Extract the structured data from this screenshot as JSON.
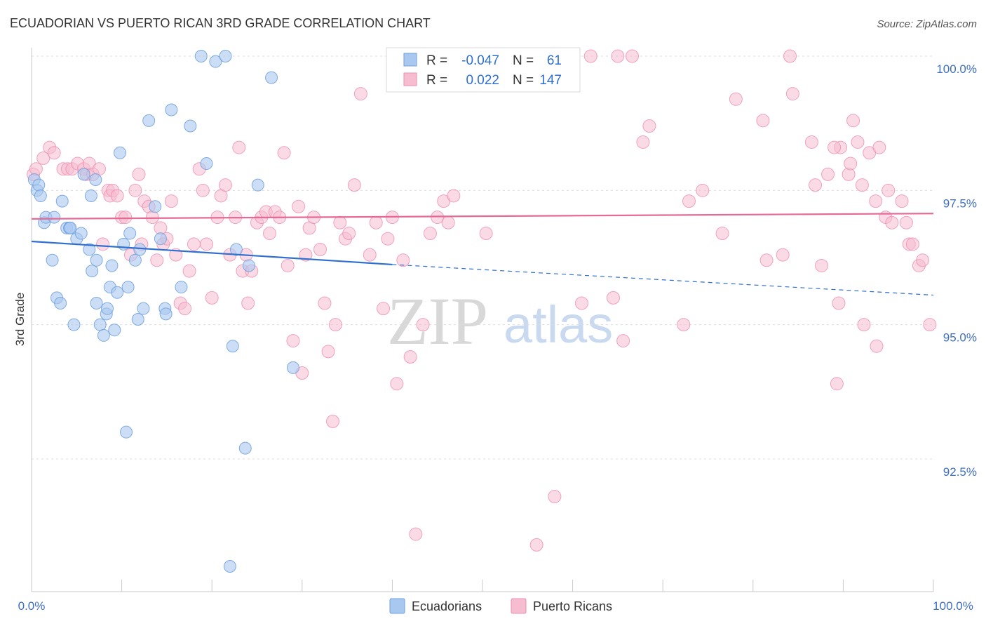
{
  "chart_data": {
    "type": "scatter",
    "title": "ECUADORIAN VS PUERTO RICAN 3RD GRADE CORRELATION CHART",
    "source": "Source: ZipAtlas.com",
    "ylabel": "3rd Grade",
    "xlim": [
      0,
      100
    ],
    "ylim": [
      90.0,
      100.4
    ],
    "x_tick_labels": [
      "0.0%",
      "100.0%"
    ],
    "y_ticks": [
      {
        "value": 100.0,
        "label": "100.0%"
      },
      {
        "value": 97.5,
        "label": "97.5%"
      },
      {
        "value": 95.0,
        "label": "95.0%"
      },
      {
        "value": 92.5,
        "label": "92.5%"
      }
    ],
    "grid": true,
    "legend": {
      "position": "top-center",
      "rows": [
        {
          "r_label": "R =",
          "r_value": "-0.047",
          "n_label": "N =",
          "n_value": "61"
        },
        {
          "r_label": "R =",
          "r_value": "0.022",
          "n_label": "N =",
          "n_value": "147"
        }
      ]
    },
    "watermark": {
      "zip": "ZIP",
      "atlas": "atlas"
    },
    "colors": {
      "ecuadorians_fill": "#a9c8f0",
      "ecuadorians_stroke": "#6f9fdc",
      "ecuadorians_line": "#2f6fd0",
      "puerto_ricans_fill": "#f6bcd0",
      "puerto_ricans_stroke": "#ec8fb0",
      "puerto_ricans_line": "#e56a96",
      "grid": "#dddddd",
      "tick_label": "#3f6fbf"
    },
    "series": [
      {
        "name": "Ecuadorians",
        "trend": {
          "x0": 0,
          "y0": 96.55,
          "x1": 40,
          "y1": 96.12,
          "dash_to_x": 100,
          "dash_to_y": 95.55
        },
        "points": [
          [
            0.3,
            97.7
          ],
          [
            0.6,
            97.5
          ],
          [
            0.8,
            97.6
          ],
          [
            1.0,
            97.4
          ],
          [
            1.4,
            96.9
          ],
          [
            1.6,
            97.0
          ],
          [
            2.5,
            97.0
          ],
          [
            3.4,
            97.3
          ],
          [
            3.9,
            96.8
          ],
          [
            4.2,
            96.8
          ],
          [
            5.0,
            96.6
          ],
          [
            5.5,
            96.7
          ],
          [
            6.4,
            96.4
          ],
          [
            6.7,
            96.0
          ],
          [
            6.6,
            97.4
          ],
          [
            7.2,
            95.4
          ],
          [
            7.1,
            97.7
          ],
          [
            2.3,
            96.2
          ],
          [
            2.8,
            95.5
          ],
          [
            3.2,
            95.4
          ],
          [
            4.7,
            95.0
          ],
          [
            7.2,
            96.2
          ],
          [
            7.6,
            95.0
          ],
          [
            8.0,
            94.8
          ],
          [
            8.3,
            95.2
          ],
          [
            8.4,
            95.3
          ],
          [
            8.7,
            95.7
          ],
          [
            8.9,
            96.1
          ],
          [
            9.2,
            94.9
          ],
          [
            9.5,
            95.6
          ],
          [
            9.8,
            98.2
          ],
          [
            10.2,
            96.5
          ],
          [
            10.5,
            93.0
          ],
          [
            10.7,
            95.7
          ],
          [
            10.9,
            96.7
          ],
          [
            11.5,
            96.2
          ],
          [
            11.8,
            95.1
          ],
          [
            12.0,
            96.4
          ],
          [
            12.4,
            95.3
          ],
          [
            13.0,
            98.8
          ],
          [
            13.7,
            97.2
          ],
          [
            14.3,
            96.6
          ],
          [
            14.8,
            95.3
          ],
          [
            14.9,
            95.2
          ],
          [
            15.5,
            99.0
          ],
          [
            16.6,
            95.7
          ],
          [
            17.6,
            98.7
          ],
          [
            18.8,
            100.0
          ],
          [
            19.4,
            98.0
          ],
          [
            20.4,
            99.9
          ],
          [
            21.5,
            100.0
          ],
          [
            22.3,
            94.6
          ],
          [
            22.7,
            96.4
          ],
          [
            23.7,
            92.7
          ],
          [
            24.1,
            96.1
          ],
          [
            25.1,
            97.6
          ],
          [
            26.6,
            99.6
          ],
          [
            22.0,
            90.5
          ],
          [
            29.0,
            94.2
          ],
          [
            5.8,
            97.8
          ],
          [
            4.3,
            96.8
          ]
        ]
      },
      {
        "name": "Puerto Ricans",
        "trend": {
          "x0": 0,
          "y0": 96.97,
          "x1": 100,
          "y1": 97.07
        },
        "points": [
          [
            0.2,
            97.8
          ],
          [
            0.5,
            97.9
          ],
          [
            1.3,
            98.1
          ],
          [
            2.0,
            98.3
          ],
          [
            2.5,
            98.2
          ],
          [
            3.5,
            97.9
          ],
          [
            4.0,
            97.9
          ],
          [
            4.5,
            97.9
          ],
          [
            5.1,
            98.0
          ],
          [
            5.8,
            97.9
          ],
          [
            6.1,
            97.8
          ],
          [
            6.4,
            98.0
          ],
          [
            6.8,
            97.8
          ],
          [
            7.5,
            97.9
          ],
          [
            7.9,
            96.5
          ],
          [
            8.5,
            97.5
          ],
          [
            8.7,
            97.4
          ],
          [
            9.0,
            97.5
          ],
          [
            9.5,
            97.4
          ],
          [
            10.0,
            97.0
          ],
          [
            10.4,
            97.0
          ],
          [
            11.0,
            96.3
          ],
          [
            11.5,
            97.5
          ],
          [
            11.9,
            97.8
          ],
          [
            12.2,
            96.5
          ],
          [
            12.5,
            97.3
          ],
          [
            13.0,
            97.2
          ],
          [
            13.4,
            97.0
          ],
          [
            13.9,
            96.2
          ],
          [
            14.3,
            96.8
          ],
          [
            14.6,
            96.5
          ],
          [
            15.0,
            96.6
          ],
          [
            15.5,
            97.3
          ],
          [
            16.0,
            96.3
          ],
          [
            16.5,
            95.4
          ],
          [
            17.0,
            95.3
          ],
          [
            17.5,
            96.0
          ],
          [
            18.0,
            96.5
          ],
          [
            18.6,
            97.9
          ],
          [
            19.0,
            97.5
          ],
          [
            19.4,
            96.5
          ],
          [
            20.0,
            95.5
          ],
          [
            20.6,
            97.0
          ],
          [
            21.0,
            97.4
          ],
          [
            21.5,
            97.6
          ],
          [
            22.0,
            96.3
          ],
          [
            22.6,
            97.0
          ],
          [
            23.0,
            98.3
          ],
          [
            23.4,
            96.0
          ],
          [
            23.8,
            96.3
          ],
          [
            24.0,
            95.4
          ],
          [
            24.4,
            96.0
          ],
          [
            25.0,
            96.9
          ],
          [
            25.5,
            97.0
          ],
          [
            26.0,
            97.1
          ],
          [
            26.4,
            96.7
          ],
          [
            27.0,
            97.1
          ],
          [
            27.5,
            97.0
          ],
          [
            28.0,
            98.2
          ],
          [
            28.4,
            96.1
          ],
          [
            29.0,
            94.7
          ],
          [
            29.6,
            97.2
          ],
          [
            30.0,
            94.1
          ],
          [
            30.4,
            96.3
          ],
          [
            30.8,
            96.8
          ],
          [
            31.3,
            97.0
          ],
          [
            32.0,
            96.4
          ],
          [
            32.5,
            95.4
          ],
          [
            32.9,
            94.5
          ],
          [
            33.4,
            93.2
          ],
          [
            33.7,
            95.0
          ],
          [
            34.2,
            96.9
          ],
          [
            34.8,
            96.6
          ],
          [
            35.2,
            96.7
          ],
          [
            35.8,
            97.6
          ],
          [
            36.5,
            99.3
          ],
          [
            37.5,
            96.3
          ],
          [
            38.2,
            96.9
          ],
          [
            39.0,
            95.3
          ],
          [
            39.5,
            96.6
          ],
          [
            40.0,
            97.0
          ],
          [
            40.5,
            93.9
          ],
          [
            41.2,
            96.2
          ],
          [
            42.0,
            94.4
          ],
          [
            42.6,
            91.1
          ],
          [
            43.4,
            95.0
          ],
          [
            44.2,
            96.7
          ],
          [
            45.0,
            97.0
          ],
          [
            45.7,
            97.3
          ],
          [
            46.2,
            96.9
          ],
          [
            46.8,
            97.4
          ],
          [
            47.5,
            100.0
          ],
          [
            48.0,
            100.0
          ],
          [
            49.5,
            100.0
          ],
          [
            50.4,
            96.7
          ],
          [
            52.0,
            100.0
          ],
          [
            54.0,
            100.0
          ],
          [
            55.0,
            100.0
          ],
          [
            56.0,
            90.9
          ],
          [
            58.0,
            91.8
          ],
          [
            59.0,
            100.0
          ],
          [
            61.0,
            95.4
          ],
          [
            62.0,
            100.0
          ],
          [
            64.5,
            95.5
          ],
          [
            65.0,
            100.0
          ],
          [
            65.6,
            94.7
          ],
          [
            66.6,
            100.0
          ],
          [
            67.8,
            98.4
          ],
          [
            68.5,
            98.7
          ],
          [
            72.3,
            95.0
          ],
          [
            72.9,
            97.3
          ],
          [
            74.4,
            97.5
          ],
          [
            76.6,
            96.7
          ],
          [
            78.1,
            99.2
          ],
          [
            81.1,
            98.8
          ],
          [
            81.5,
            96.2
          ],
          [
            83.3,
            96.3
          ],
          [
            84.1,
            100.0
          ],
          [
            84.4,
            99.3
          ],
          [
            86.5,
            98.4
          ],
          [
            86.9,
            97.6
          ],
          [
            87.6,
            96.1
          ],
          [
            88.3,
            97.8
          ],
          [
            89.7,
            98.3
          ],
          [
            89.0,
            98.3
          ],
          [
            89.3,
            93.9
          ],
          [
            89.5,
            95.4
          ],
          [
            90.6,
            97.8
          ],
          [
            90.8,
            98.0
          ],
          [
            91.1,
            98.8
          ],
          [
            91.6,
            98.4
          ],
          [
            92.1,
            97.6
          ],
          [
            92.3,
            95.0
          ],
          [
            92.9,
            98.2
          ],
          [
            93.6,
            97.3
          ],
          [
            93.7,
            94.6
          ],
          [
            94.0,
            98.3
          ],
          [
            94.7,
            97.0
          ],
          [
            95.0,
            97.5
          ],
          [
            95.4,
            96.9
          ],
          [
            96.5,
            97.3
          ],
          [
            97.0,
            96.9
          ],
          [
            97.3,
            96.5
          ],
          [
            97.7,
            96.5
          ],
          [
            98.4,
            96.1
          ],
          [
            98.8,
            96.2
          ],
          [
            99.6,
            95.0
          ]
        ]
      }
    ]
  },
  "bottom_legend": {
    "ecuadorians": "Ecuadorians",
    "puerto_ricans": "Puerto Ricans"
  }
}
